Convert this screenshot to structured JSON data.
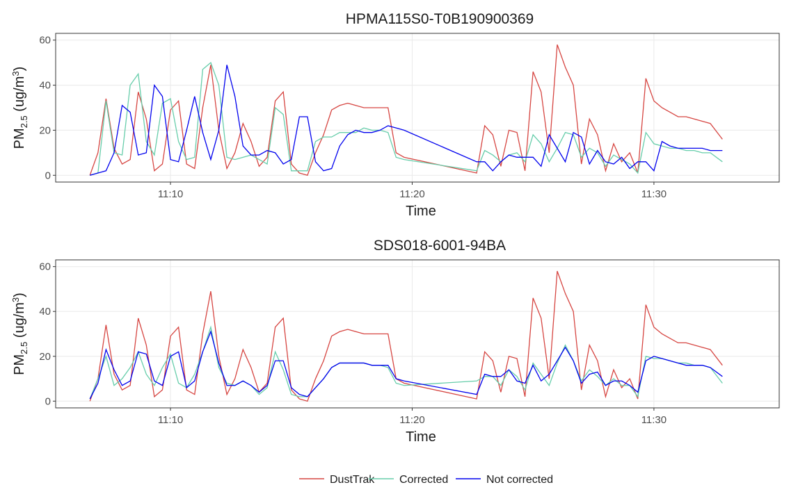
{
  "chart_data": [
    {
      "type": "line",
      "title": "HPMA115S0-T0B190900369",
      "x_label": "Time",
      "y_label": [
        "PM",
        "2.5",
        " (ug/m",
        "3",
        ")"
      ],
      "x": [
        "11:06:40",
        "11:07:00",
        "11:07:20",
        "11:07:40",
        "11:08:00",
        "11:08:20",
        "11:08:40",
        "11:09:00",
        "11:09:20",
        "11:09:40",
        "11:10:00",
        "11:10:20",
        "11:10:40",
        "11:11:00",
        "11:11:20",
        "11:11:40",
        "11:12:00",
        "11:12:20",
        "11:12:40",
        "11:13:00",
        "11:13:20",
        "11:13:40",
        "11:14:00",
        "11:14:20",
        "11:14:40",
        "11:15:00",
        "11:15:20",
        "11:15:40",
        "11:16:00",
        "11:16:20",
        "11:16:40",
        "11:17:00",
        "11:17:20",
        "11:17:40",
        "11:18:00",
        "11:18:20",
        "11:18:40",
        "11:19:00",
        "11:19:20",
        "11:19:40",
        "11:22:40",
        "11:23:00",
        "11:23:20",
        "11:23:40",
        "11:24:00",
        "11:24:20",
        "11:24:40",
        "11:25:00",
        "11:25:20",
        "11:25:40",
        "11:26:00",
        "11:26:20",
        "11:26:40",
        "11:27:00",
        "11:27:20",
        "11:27:40",
        "11:28:00",
        "11:28:20",
        "11:28:40",
        "11:29:00",
        "11:29:20",
        "11:29:40",
        "11:30:00",
        "11:30:20",
        "11:30:40",
        "11:31:00",
        "11:31:20",
        "11:31:40",
        "11:32:00",
        "11:32:20",
        "11:32:50"
      ],
      "series": [
        {
          "name": "DustTrak",
          "color": "#d64541",
          "values": [
            0,
            10,
            34,
            12,
            5,
            7,
            37,
            25,
            2,
            5,
            29,
            33,
            5,
            3,
            30,
            49,
            20,
            3,
            10,
            23,
            15,
            4,
            8,
            33,
            37,
            5,
            1,
            0,
            10,
            18,
            29,
            31,
            32,
            31,
            30,
            30,
            30,
            30,
            10,
            8,
            1,
            22,
            18,
            4,
            20,
            19,
            2,
            46,
            37,
            10,
            58,
            48,
            40,
            5,
            25,
            18,
            2,
            14,
            6,
            10,
            1,
            43,
            33,
            30,
            28,
            26,
            26,
            25,
            24,
            23,
            16
          ]
        },
        {
          "name": "Corrected",
          "color": "#66cdaa",
          "values": [
            0,
            1,
            33,
            10,
            9,
            40,
            45,
            15,
            9,
            32,
            34,
            15,
            7,
            8,
            47,
            50,
            40,
            8,
            7,
            8,
            9,
            7,
            5,
            30,
            27,
            2,
            2,
            2,
            15,
            17,
            17,
            19,
            19,
            19,
            21,
            20,
            20,
            19,
            8,
            7,
            2,
            11,
            9,
            6,
            9,
            10,
            6,
            18,
            14,
            6,
            12,
            19,
            18,
            8,
            12,
            10,
            4,
            9,
            7,
            5,
            1,
            19,
            14,
            13,
            12,
            12,
            11,
            11,
            10,
            10,
            6
          ]
        },
        {
          "name": "Not corrected",
          "color": "#0000ee",
          "values": [
            0,
            1,
            2,
            10,
            31,
            28,
            9,
            10,
            40,
            35,
            7,
            6,
            20,
            35,
            19,
            7,
            20,
            49,
            35,
            13,
            9,
            9,
            11,
            10,
            5,
            7,
            26,
            26,
            6,
            2,
            3,
            13,
            18,
            20,
            19,
            19,
            20,
            22,
            21,
            20,
            6,
            6,
            2,
            6,
            9,
            8,
            8,
            8,
            4,
            18,
            12,
            6,
            19,
            17,
            5,
            11,
            6,
            5,
            8,
            3,
            6,
            6,
            2,
            15,
            13,
            12,
            12,
            12,
            12,
            11,
            11
          ]
        }
      ],
      "xlim": [
        "11:05:15",
        "11:35:11"
      ],
      "xticks": [
        {
          "value": "11:10:00",
          "label": "11:10"
        },
        {
          "value": "11:20:00",
          "label": "11:20"
        },
        {
          "value": "11:30:00",
          "label": "11:30"
        }
      ],
      "ylim": [
        -3,
        63
      ],
      "yticks": [
        0,
        20,
        40,
        60
      ],
      "grid": true,
      "legend": "bottom"
    },
    {
      "type": "line",
      "title": "SDS018-6001-94BA",
      "x_label": "Time",
      "y_label": [
        "PM",
        "2.5",
        " (ug/m",
        "3",
        ")"
      ],
      "x": [
        "11:06:40",
        "11:07:00",
        "11:07:20",
        "11:07:40",
        "11:08:00",
        "11:08:20",
        "11:08:40",
        "11:09:00",
        "11:09:20",
        "11:09:40",
        "11:10:00",
        "11:10:20",
        "11:10:40",
        "11:11:00",
        "11:11:20",
        "11:11:40",
        "11:12:00",
        "11:12:20",
        "11:12:40",
        "11:13:00",
        "11:13:20",
        "11:13:40",
        "11:14:00",
        "11:14:20",
        "11:14:40",
        "11:15:00",
        "11:15:20",
        "11:15:40",
        "11:16:00",
        "11:16:20",
        "11:16:40",
        "11:17:00",
        "11:17:20",
        "11:17:40",
        "11:18:00",
        "11:18:20",
        "11:18:40",
        "11:19:00",
        "11:19:20",
        "11:19:40",
        "11:22:40",
        "11:23:00",
        "11:23:20",
        "11:23:40",
        "11:24:00",
        "11:24:20",
        "11:24:40",
        "11:25:00",
        "11:25:20",
        "11:25:40",
        "11:26:00",
        "11:26:20",
        "11:26:40",
        "11:27:00",
        "11:27:20",
        "11:27:40",
        "11:28:00",
        "11:28:20",
        "11:28:40",
        "11:29:00",
        "11:29:20",
        "11:29:40",
        "11:30:00",
        "11:30:20",
        "11:30:40",
        "11:31:00",
        "11:31:20",
        "11:31:40",
        "11:32:00",
        "11:32:20",
        "11:32:50"
      ],
      "series": [
        {
          "name": "DustTrak",
          "color": "#d64541",
          "values": [
            0,
            10,
            34,
            12,
            5,
            7,
            37,
            25,
            2,
            5,
            29,
            33,
            5,
            3,
            30,
            49,
            20,
            3,
            10,
            23,
            15,
            4,
            8,
            33,
            37,
            5,
            1,
            0,
            10,
            18,
            29,
            31,
            32,
            31,
            30,
            30,
            30,
            30,
            10,
            8,
            1,
            22,
            18,
            4,
            20,
            19,
            2,
            46,
            37,
            10,
            58,
            48,
            40,
            5,
            25,
            18,
            2,
            14,
            6,
            10,
            1,
            43,
            33,
            30,
            28,
            26,
            26,
            25,
            24,
            23,
            16
          ]
        },
        {
          "name": "Corrected",
          "color": "#66cdaa",
          "values": [
            1,
            10,
            20,
            7,
            10,
            15,
            22,
            12,
            7,
            15,
            21,
            8,
            6,
            12,
            22,
            33,
            15,
            8,
            7,
            9,
            7,
            3,
            6,
            22,
            14,
            3,
            2,
            2,
            6,
            10,
            15,
            17,
            17,
            17,
            17,
            16,
            16,
            15,
            8,
            7,
            9,
            11,
            11,
            7,
            14,
            11,
            5,
            17,
            12,
            7,
            17,
            25,
            18,
            9,
            14,
            11,
            7,
            10,
            7,
            7,
            2,
            20,
            19,
            19,
            18,
            17,
            17,
            16,
            16,
            15,
            8
          ]
        },
        {
          "name": "Not corrected",
          "color": "#0000ee",
          "values": [
            1,
            8,
            23,
            14,
            7,
            9,
            22,
            21,
            9,
            7,
            20,
            22,
            6,
            9,
            22,
            31,
            17,
            7,
            7,
            9,
            7,
            4,
            7,
            18,
            18,
            6,
            3,
            2,
            6,
            10,
            15,
            17,
            17,
            17,
            17,
            16,
            16,
            16,
            10,
            9,
            3,
            12,
            11,
            11,
            14,
            9,
            8,
            16,
            9,
            12,
            18,
            24,
            18,
            8,
            12,
            13,
            7,
            9,
            9,
            7,
            4,
            18,
            20,
            19,
            18,
            17,
            16,
            16,
            16,
            15,
            11
          ]
        }
      ],
      "xlim": [
        "11:05:15",
        "11:35:11"
      ],
      "xticks": [
        {
          "value": "11:10:00",
          "label": "11:10"
        },
        {
          "value": "11:20:00",
          "label": "11:20"
        },
        {
          "value": "11:30:00",
          "label": "11:30"
        }
      ],
      "ylim": [
        -3,
        63
      ],
      "yticks": [
        0,
        20,
        40,
        60
      ],
      "grid": true
    }
  ]
}
